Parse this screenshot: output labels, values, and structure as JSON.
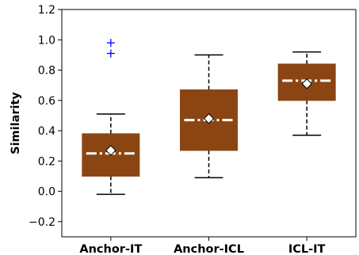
{
  "chart_data": {
    "type": "box",
    "title": "",
    "xlabel": "",
    "ylabel": "Similarity",
    "ylim": [
      -0.3,
      1.2
    ],
    "yticks": [
      -0.2,
      0.0,
      0.2,
      0.4,
      0.6,
      0.8,
      1.0,
      1.2
    ],
    "ytick_labels": [
      "−0.2",
      "0.0",
      "0.2",
      "0.4",
      "0.6",
      "0.8",
      "1.0",
      "1.2"
    ],
    "categories": [
      "Anchor-IT",
      "Anchor-ICL",
      "ICL-IT"
    ],
    "boxes": [
      {
        "category": "Anchor-IT",
        "whisker_low": -0.02,
        "q1": 0.1,
        "median": 0.25,
        "mean": 0.27,
        "q3": 0.38,
        "whisker_high": 0.51,
        "outliers": [
          0.91,
          0.98
        ]
      },
      {
        "category": "Anchor-ICL",
        "whisker_low": 0.09,
        "q1": 0.27,
        "median": 0.47,
        "mean": 0.48,
        "q3": 0.67,
        "whisker_high": 0.9,
        "outliers": []
      },
      {
        "category": "ICL-IT",
        "whisker_low": 0.37,
        "q1": 0.6,
        "median": 0.73,
        "mean": 0.71,
        "q3": 0.84,
        "whisker_high": 0.92,
        "outliers": []
      }
    ],
    "grid": false,
    "legend": "none",
    "colors": {
      "box_fill": "#8b4513",
      "median_line": "#ffffff",
      "mean_marker": "#ffffff",
      "outlier": "#0000ff",
      "whisker": "#000000"
    }
  }
}
